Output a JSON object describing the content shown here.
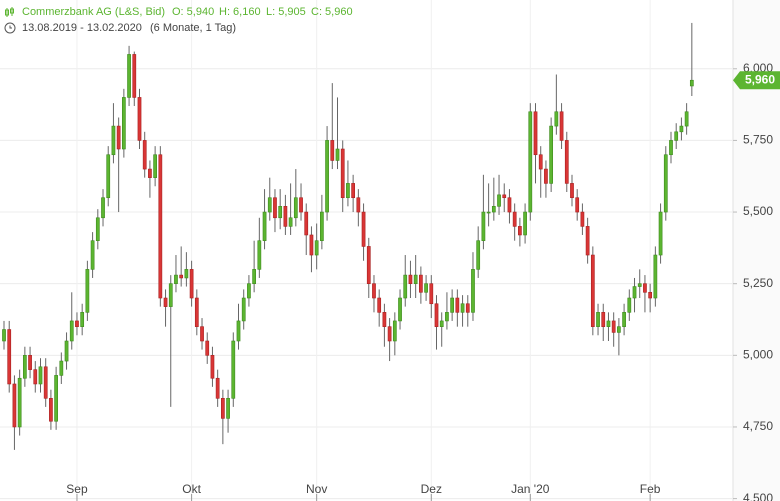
{
  "chart_data": {
    "type": "candlestick",
    "title": "Commerzbank AG (L&S, Bid)",
    "summary": [
      "O: 5,940",
      "H: 6,160",
      "L: 5,905",
      "C: 5,960"
    ],
    "date_range": "13.08.2019 - 13.02.2020",
    "period": "(6 Monate, 1 Tag)",
    "up_color": "#5cb531",
    "down_color": "#d93636",
    "last_value": 5.96,
    "last_value_label": "5,960",
    "open": [
      5.05,
      5.09,
      4.9,
      4.75,
      4.92,
      5.0,
      4.95,
      4.9,
      4.96,
      4.85,
      4.77,
      4.93,
      4.98,
      5.05,
      5.12,
      5.1,
      5.15,
      5.3,
      5.4,
      5.48,
      5.55,
      5.7,
      5.8,
      5.72,
      5.9,
      6.05,
      5.9,
      5.75,
      5.65,
      5.62,
      5.7,
      5.2,
      5.17,
      5.25,
      5.28,
      5.27,
      5.3,
      5.2,
      5.1,
      5.05,
      5.0,
      4.92,
      4.85,
      4.78,
      4.85,
      5.05,
      5.12,
      5.2,
      5.25,
      5.3,
      5.4,
      5.5,
      5.55,
      5.48,
      5.52,
      5.45,
      5.48,
      5.55,
      5.5,
      5.42,
      5.35,
      5.4,
      5.5,
      5.75,
      5.68,
      5.72,
      5.55,
      5.6,
      5.55,
      5.5,
      5.38,
      5.25,
      5.2,
      5.15,
      5.1,
      5.05,
      5.12,
      5.2,
      5.28,
      5.25,
      5.28,
      5.22,
      5.25,
      5.18,
      5.1,
      5.12,
      5.15,
      5.2,
      5.15,
      5.18,
      5.15,
      5.3,
      5.4,
      5.5,
      5.5,
      5.52,
      5.56,
      5.55,
      5.5,
      5.45,
      5.42,
      5.5,
      5.85,
      5.7,
      5.65,
      5.6,
      5.8,
      5.85,
      5.75,
      5.6,
      5.55,
      5.5,
      5.45,
      5.35,
      5.1,
      5.15,
      5.1,
      5.12,
      5.08,
      5.1,
      5.15,
      5.2,
      5.24,
      5.25,
      5.22,
      5.2,
      5.35,
      5.5,
      5.7,
      5.75,
      5.78,
      5.8,
      5.94
    ],
    "high": [
      5.12,
      5.12,
      4.93,
      4.95,
      5.03,
      5.03,
      4.98,
      4.99,
      4.99,
      4.88,
      4.96,
      5.01,
      5.08,
      5.22,
      5.15,
      5.18,
      5.33,
      5.43,
      5.51,
      5.58,
      5.73,
      5.88,
      5.83,
      5.93,
      6.08,
      6.06,
      5.93,
      5.78,
      5.68,
      5.73,
      5.73,
      5.23,
      5.28,
      5.35,
      5.38,
      5.36,
      5.33,
      5.23,
      5.13,
      5.08,
      5.03,
      4.95,
      4.88,
      4.88,
      5.08,
      5.18,
      5.23,
      5.28,
      5.4,
      5.48,
      5.58,
      5.62,
      5.58,
      5.58,
      5.56,
      5.6,
      5.65,
      5.6,
      5.53,
      5.45,
      5.46,
      5.56,
      5.8,
      5.95,
      5.9,
      5.75,
      5.68,
      5.63,
      5.58,
      5.53,
      5.41,
      5.28,
      5.23,
      5.18,
      5.13,
      5.15,
      5.23,
      5.35,
      5.33,
      5.35,
      5.31,
      5.28,
      5.28,
      5.21,
      5.15,
      5.22,
      5.23,
      5.23,
      5.21,
      5.21,
      5.36,
      5.45,
      5.63,
      5.6,
      5.62,
      5.63,
      5.6,
      5.58,
      5.53,
      5.48,
      5.53,
      5.88,
      5.88,
      5.73,
      5.68,
      5.83,
      5.98,
      5.88,
      5.78,
      5.63,
      5.58,
      5.53,
      5.48,
      5.38,
      5.18,
      5.18,
      5.15,
      5.15,
      5.13,
      5.18,
      5.23,
      5.27,
      5.3,
      5.28,
      5.25,
      5.38,
      5.53,
      5.73,
      5.78,
      5.81,
      5.83,
      5.88,
      6.16
    ],
    "low": [
      5.02,
      4.87,
      4.67,
      4.72,
      4.89,
      4.92,
      4.87,
      4.87,
      4.82,
      4.74,
      4.74,
      4.9,
      4.95,
      5.02,
      5.07,
      5.07,
      5.12,
      5.27,
      5.37,
      5.45,
      5.52,
      5.67,
      5.5,
      5.69,
      5.87,
      5.87,
      5.72,
      5.62,
      5.55,
      5.59,
      5.17,
      5.1,
      4.82,
      5.22,
      5.24,
      5.24,
      5.17,
      5.07,
      5.02,
      4.97,
      4.89,
      4.82,
      4.69,
      4.73,
      4.82,
      5.02,
      5.09,
      5.17,
      5.22,
      5.27,
      5.37,
      5.47,
      5.43,
      5.44,
      5.42,
      5.42,
      5.45,
      5.47,
      5.35,
      5.29,
      5.3,
      5.37,
      5.47,
      5.65,
      5.65,
      5.5,
      5.52,
      5.5,
      5.45,
      5.33,
      5.2,
      5.15,
      5.1,
      5.03,
      4.98,
      5.0,
      5.09,
      5.17,
      5.2,
      5.2,
      5.18,
      5.19,
      5.13,
      5.02,
      5.03,
      5.09,
      5.12,
      5.1,
      5.1,
      5.1,
      5.12,
      5.27,
      5.37,
      5.45,
      5.47,
      5.49,
      5.5,
      5.46,
      5.4,
      5.38,
      5.39,
      5.47,
      5.6,
      5.55,
      5.55,
      5.57,
      5.77,
      5.72,
      5.57,
      5.52,
      5.47,
      5.42,
      5.32,
      5.07,
      5.07,
      5.05,
      5.05,
      5.03,
      5.0,
      5.07,
      5.12,
      5.15,
      5.2,
      5.15,
      5.15,
      5.17,
      5.32,
      5.47,
      5.67,
      5.72,
      5.75,
      5.77,
      5.905
    ],
    "close": [
      5.09,
      4.9,
      4.75,
      4.92,
      5.0,
      4.95,
      4.9,
      4.96,
      4.85,
      4.77,
      4.93,
      4.98,
      5.05,
      5.12,
      5.1,
      5.15,
      5.3,
      5.4,
      5.48,
      5.55,
      5.7,
      5.8,
      5.72,
      5.9,
      6.05,
      5.9,
      5.75,
      5.65,
      5.62,
      5.7,
      5.2,
      5.17,
      5.25,
      5.28,
      5.27,
      5.3,
      5.2,
      5.1,
      5.05,
      5.0,
      4.92,
      4.85,
      4.78,
      4.85,
      5.05,
      5.12,
      5.2,
      5.25,
      5.3,
      5.4,
      5.5,
      5.55,
      5.48,
      5.52,
      5.45,
      5.48,
      5.55,
      5.5,
      5.42,
      5.35,
      5.4,
      5.5,
      5.75,
      5.68,
      5.72,
      5.55,
      5.6,
      5.55,
      5.5,
      5.38,
      5.25,
      5.2,
      5.15,
      5.1,
      5.05,
      5.12,
      5.2,
      5.28,
      5.25,
      5.28,
      5.22,
      5.25,
      5.18,
      5.1,
      5.12,
      5.15,
      5.2,
      5.15,
      5.18,
      5.15,
      5.3,
      5.4,
      5.5,
      5.5,
      5.52,
      5.56,
      5.55,
      5.5,
      5.45,
      5.42,
      5.5,
      5.85,
      5.7,
      5.65,
      5.6,
      5.8,
      5.85,
      5.75,
      5.6,
      5.55,
      5.5,
      5.45,
      5.35,
      5.1,
      5.15,
      5.1,
      5.12,
      5.08,
      5.1,
      5.15,
      5.2,
      5.24,
      5.25,
      5.22,
      5.2,
      5.35,
      5.5,
      5.7,
      5.75,
      5.78,
      5.8,
      5.85,
      5.96
    ],
    "xlim": [
      -0.77,
      139.9
    ],
    "xticks": [
      {
        "value": 14,
        "label": "Sep"
      },
      {
        "value": 36,
        "label": "Okt"
      },
      {
        "value": 60,
        "label": "Nov"
      },
      {
        "value": 82,
        "label": "Dez"
      },
      {
        "value": 101,
        "label": "Jan '20"
      },
      {
        "value": 124,
        "label": "Feb"
      }
    ],
    "ylim": [
      4.5,
      6.24
    ],
    "yticks": [
      {
        "value": 4.5,
        "label": "4,500"
      },
      {
        "value": 4.75,
        "label": "4,750"
      },
      {
        "value": 5,
        "label": "5,000"
      },
      {
        "value": 5.25,
        "label": "5,250"
      },
      {
        "value": 5.5,
        "label": "5,500"
      },
      {
        "value": 5.75,
        "label": "5,750"
      },
      {
        "value": 6,
        "label": "6,000"
      }
    ],
    "grid": true
  }
}
